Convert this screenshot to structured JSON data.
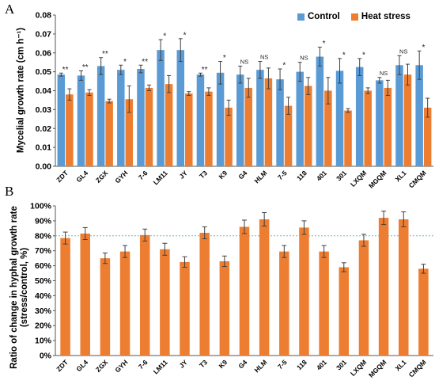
{
  "figure": {
    "panel_a_letter": "A",
    "panel_b_letter": "B",
    "panel_a_ylabel": "Mycelial growth rate (cm h⁻¹)",
    "panel_b_ylabel_line1": "Ratio of change in hyphal growth rate",
    "panel_b_ylabel_line2": "(stress/control, %)"
  },
  "legend": {
    "control_label": "Control",
    "heat_label": "Heat stress"
  },
  "colors": {
    "control": "#5B9BD5",
    "heat": "#ED7D31",
    "error_bar": "#404040",
    "reference_line": "#7fb3b3"
  },
  "chart_data": [
    {
      "type": "bar",
      "title": "",
      "xlabel": "",
      "ylabel": "Mycelial growth rate (cm h⁻¹)",
      "ylim": [
        0,
        0.08
      ],
      "yticks": [
        "0.00",
        "0.01",
        "0.02",
        "0.03",
        "0.04",
        "0.05",
        "0.06",
        "0.07",
        "0.08"
      ],
      "grid": false,
      "legend_position": "top-right",
      "categories": [
        "ZDT",
        "GL4",
        "ZGX",
        "GYH",
        "7-6",
        "LM11",
        "JY",
        "T3",
        "K9",
        "G4",
        "HLM",
        "7-5",
        "118",
        "401",
        "301",
        "LXQM",
        "MGQM",
        "XL1",
        "CMQM"
      ],
      "series": [
        {
          "name": "Control",
          "values": [
            0.0485,
            0.048,
            0.053,
            0.051,
            0.0515,
            0.0615,
            0.0615,
            0.0485,
            0.0495,
            0.0485,
            0.051,
            0.046,
            0.05,
            0.058,
            0.0505,
            0.0525,
            0.0455,
            0.0535,
            0.0535
          ],
          "errors": [
            0.0008,
            0.0025,
            0.0045,
            0.0025,
            0.002,
            0.0055,
            0.006,
            0.0008,
            0.006,
            0.0045,
            0.0045,
            0.0055,
            0.005,
            0.005,
            0.0065,
            0.0045,
            0.0015,
            0.005,
            0.0075
          ]
        },
        {
          "name": "Heat stress",
          "values": [
            0.038,
            0.039,
            0.0345,
            0.0355,
            0.0415,
            0.0435,
            0.0385,
            0.0395,
            0.031,
            0.0415,
            0.0465,
            0.032,
            0.0425,
            0.04,
            0.0295,
            0.04,
            0.0415,
            0.0485,
            0.031
          ],
          "errors": [
            0.003,
            0.0015,
            0.001,
            0.007,
            0.0015,
            0.0045,
            0.001,
            0.002,
            0.004,
            0.005,
            0.0055,
            0.0045,
            0.0045,
            0.007,
            0.001,
            0.0015,
            0.004,
            0.0055,
            0.005
          ]
        }
      ],
      "annotations": [
        "**",
        "**",
        "**",
        "*",
        "**",
        "*",
        "*",
        "**",
        "*",
        "NS",
        "NS",
        "*",
        "NS",
        "*",
        "*",
        "*",
        "NS",
        "NS",
        "*"
      ]
    },
    {
      "type": "bar",
      "title": "",
      "xlabel": "",
      "ylabel": "Ratio of change in hyphal growth rate (stress/control, %)",
      "ylim": [
        0,
        100
      ],
      "yticks": [
        "0%",
        "10%",
        "20%",
        "30%",
        "40%",
        "50%",
        "60%",
        "70%",
        "80%",
        "90%",
        "100%"
      ],
      "grid": false,
      "reference_line": 80,
      "categories": [
        "ZDT",
        "GL4",
        "ZGX",
        "GYH",
        "7-6",
        "LM11",
        "JY",
        "T3",
        "K9",
        "G4",
        "HLM",
        "7-5",
        "118",
        "401",
        "301",
        "LXQM",
        "MGQM",
        "XL1",
        "CMQM"
      ],
      "series": [
        {
          "values": [
            78.5,
            81.5,
            65,
            69.5,
            80.5,
            71,
            62.5,
            82,
            63,
            86,
            91,
            69.5,
            85.5,
            69.5,
            59,
            77,
            92,
            91,
            58
          ],
          "errors": [
            4,
            4,
            3.5,
            4,
            4,
            4,
            3.5,
            4,
            3.5,
            4.5,
            4.5,
            4,
            4.5,
            4,
            3,
            4,
            4.5,
            5,
            3
          ]
        }
      ]
    }
  ]
}
